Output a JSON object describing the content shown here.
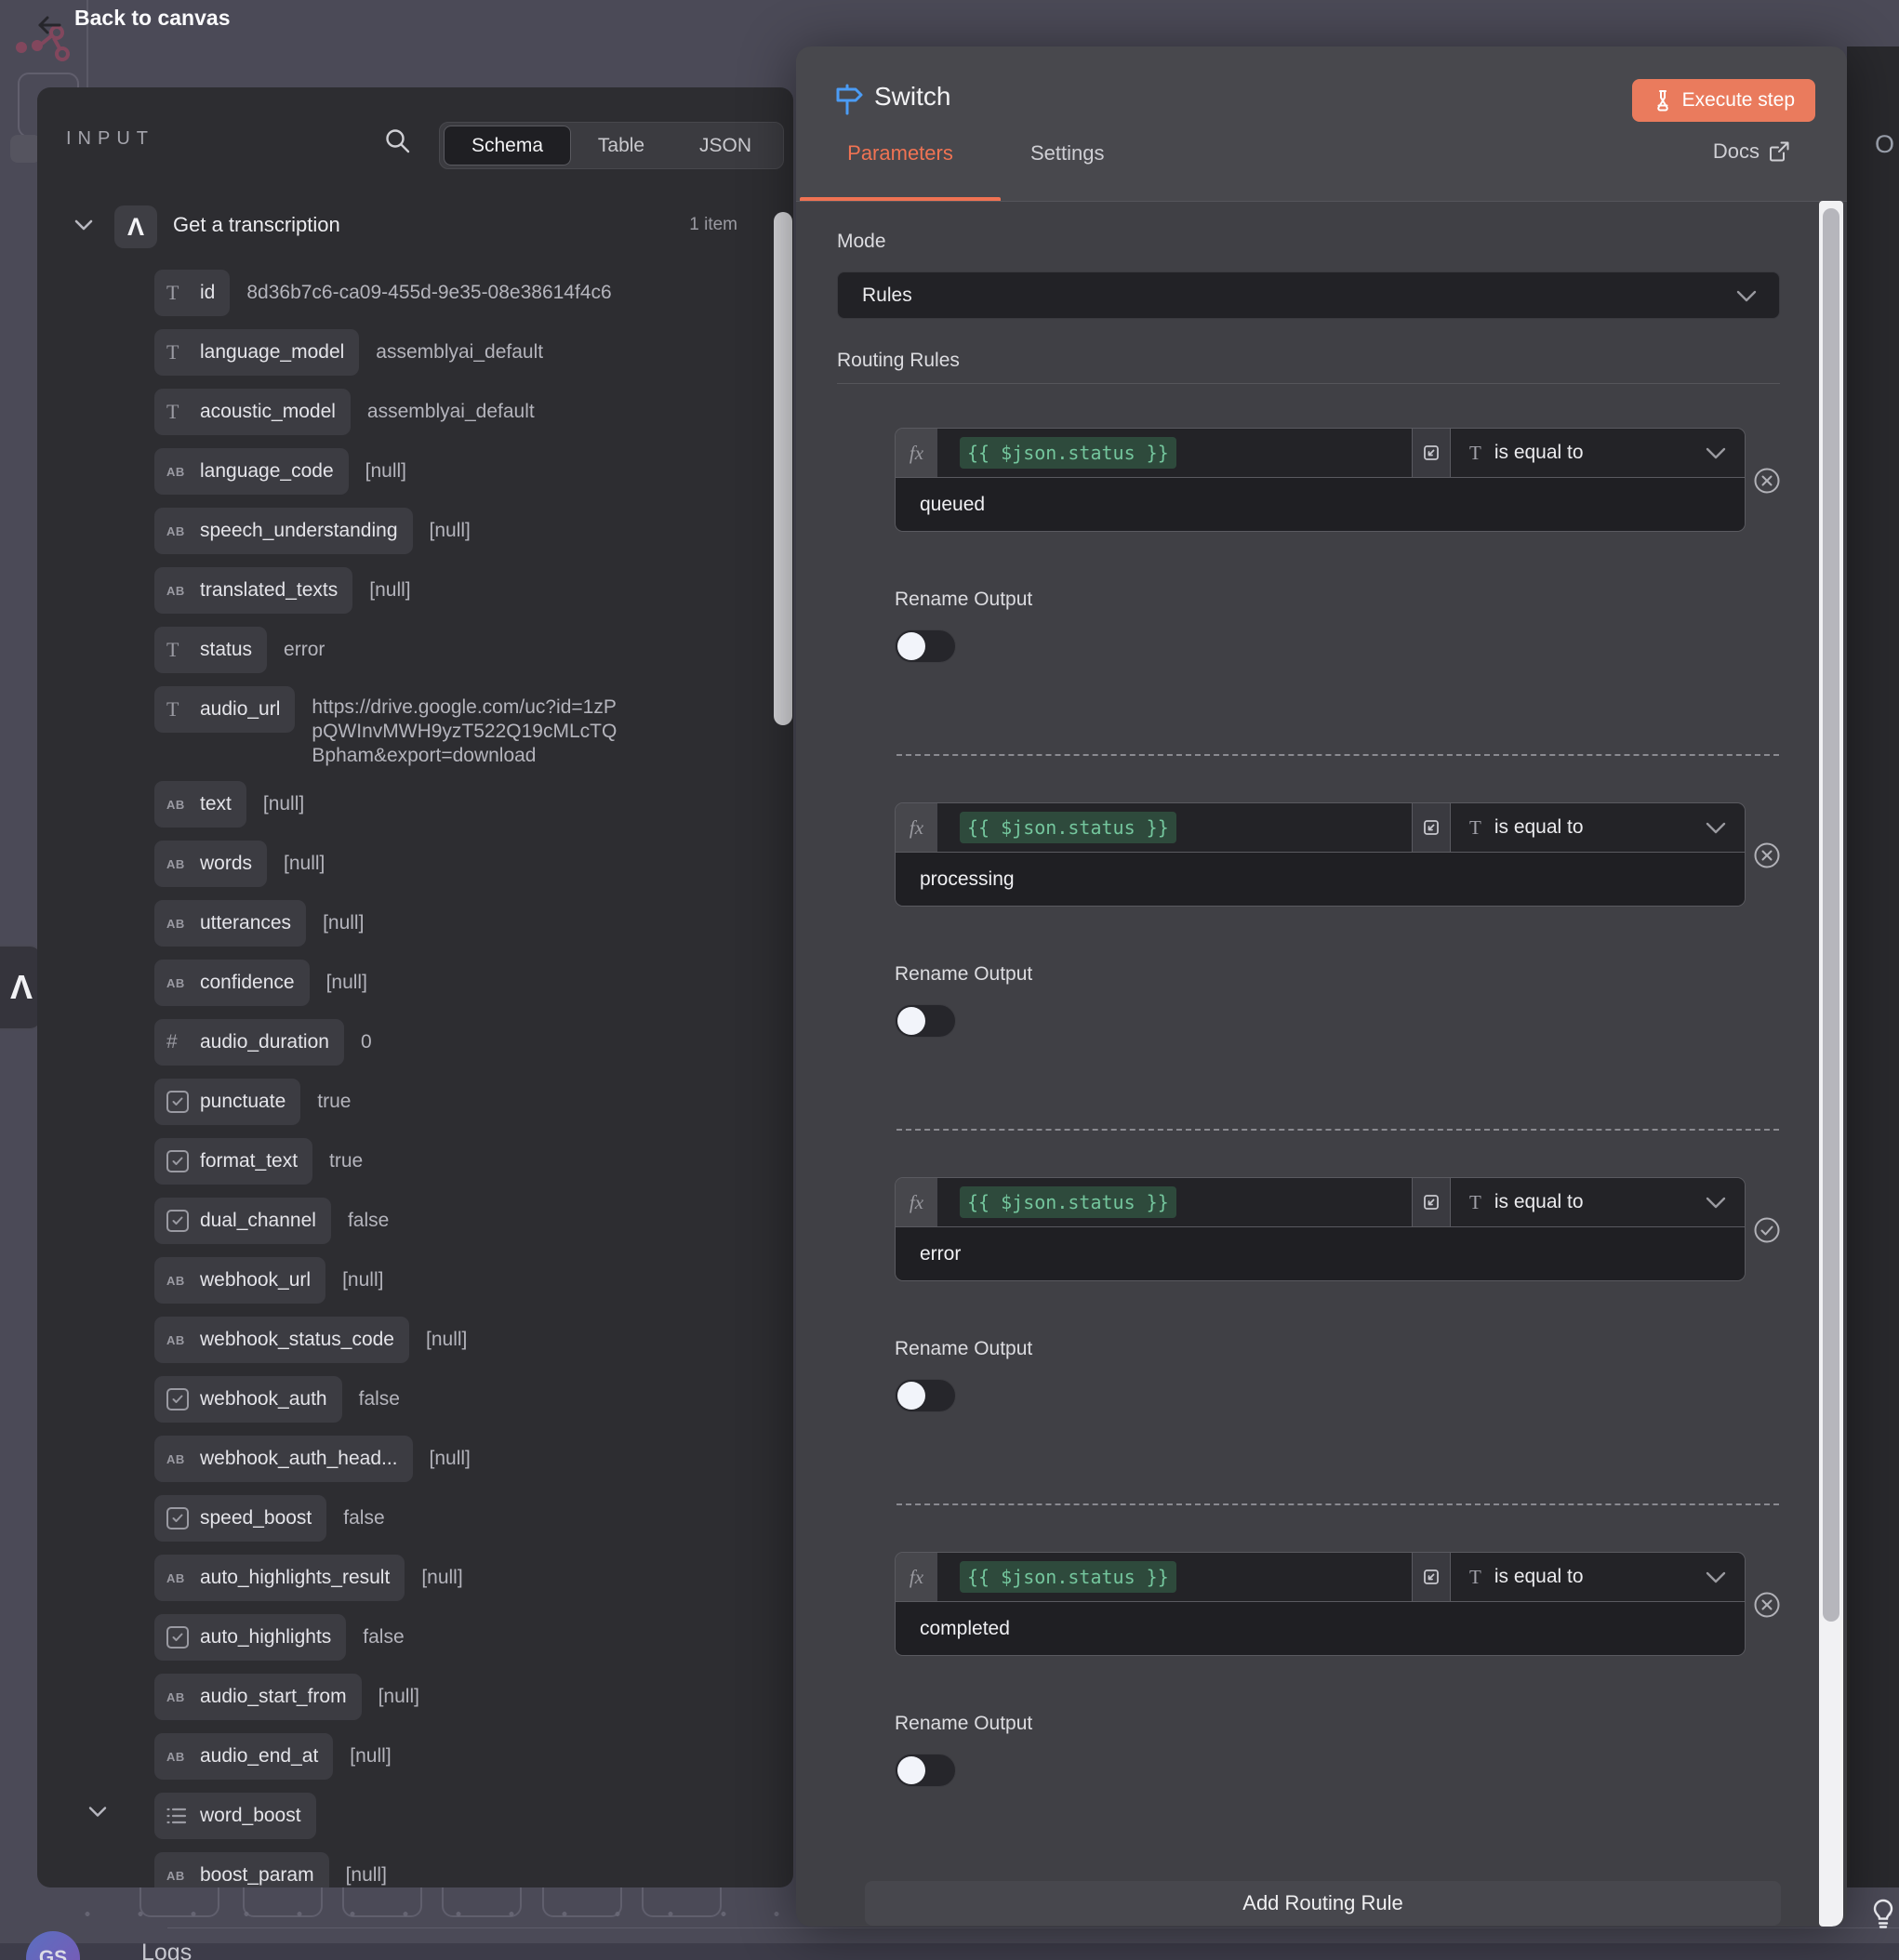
{
  "topbar": {
    "back_label": "Back to canvas"
  },
  "input_panel": {
    "title": "INPUT",
    "tabs": [
      {
        "label": "Schema",
        "selected": true
      },
      {
        "label": "Table",
        "selected": false
      },
      {
        "label": "JSON",
        "selected": false
      }
    ],
    "root": {
      "label": "Get a transcription",
      "count": "1 item"
    },
    "rows": [
      {
        "icon": "text",
        "name": "id",
        "value": "8d36b7c6-ca09-455d-9e35-08e38614f4c6"
      },
      {
        "icon": "text",
        "name": "language_model",
        "value": "assemblyai_default"
      },
      {
        "icon": "text",
        "name": "acoustic_model",
        "value": "assemblyai_default"
      },
      {
        "icon": "ab",
        "name": "language_code",
        "value": "[null]"
      },
      {
        "icon": "ab",
        "name": "speech_understanding",
        "value": "[null]"
      },
      {
        "icon": "ab",
        "name": "translated_texts",
        "value": "[null]"
      },
      {
        "icon": "text",
        "name": "status",
        "value": "error"
      },
      {
        "icon": "text",
        "name": "audio_url",
        "value": "https://drive.google.com/uc?id=1zPpQWInvMWH9yzT522Q19cMLcTQBpham&export=download",
        "wrap": true
      },
      {
        "icon": "ab",
        "name": "text",
        "value": "[null]"
      },
      {
        "icon": "ab",
        "name": "words",
        "value": "[null]"
      },
      {
        "icon": "ab",
        "name": "utterances",
        "value": "[null]"
      },
      {
        "icon": "ab",
        "name": "confidence",
        "value": "[null]"
      },
      {
        "icon": "num",
        "name": "audio_duration",
        "value": "0"
      },
      {
        "icon": "bool",
        "name": "punctuate",
        "value": "true"
      },
      {
        "icon": "bool",
        "name": "format_text",
        "value": "true"
      },
      {
        "icon": "bool",
        "name": "dual_channel",
        "value": "false"
      },
      {
        "icon": "ab",
        "name": "webhook_url",
        "value": "[null]"
      },
      {
        "icon": "ab",
        "name": "webhook_status_code",
        "value": "[null]"
      },
      {
        "icon": "bool",
        "name": "webhook_auth",
        "value": "false"
      },
      {
        "icon": "ab",
        "name": "webhook_auth_head...",
        "value": "[null]"
      },
      {
        "icon": "bool",
        "name": "speed_boost",
        "value": "false"
      },
      {
        "icon": "ab",
        "name": "auto_highlights_result",
        "value": "[null]"
      },
      {
        "icon": "bool",
        "name": "auto_highlights",
        "value": "false"
      },
      {
        "icon": "ab",
        "name": "audio_start_from",
        "value": "[null]"
      },
      {
        "icon": "ab",
        "name": "audio_end_at",
        "value": "[null]"
      },
      {
        "icon": "list",
        "name": "word_boost",
        "value": "",
        "caret": true
      },
      {
        "icon": "ab",
        "name": "boost_param",
        "value": "[null]"
      }
    ]
  },
  "switch_panel": {
    "title": "Switch",
    "execute_label": "Execute step",
    "tabs": {
      "parameters": "Parameters",
      "settings": "Settings"
    },
    "docs_label": "Docs",
    "mode_label": "Mode",
    "mode_value": "Rules",
    "routing_label": "Routing Rules",
    "rename_label": "Rename Output",
    "add_rule_label": "Add Routing Rule",
    "rules": [
      {
        "expression": "{{ $json.status }}",
        "operator": "is equal to",
        "value": "queued",
        "action_icon": "x-circle"
      },
      {
        "expression": "{{ $json.status }}",
        "operator": "is equal to",
        "value": "processing",
        "action_icon": "x-circle"
      },
      {
        "expression": "{{ $json.status }}",
        "operator": "is equal to",
        "value": "error",
        "action_icon": "check-circle"
      },
      {
        "expression": "{{ $json.status }}",
        "operator": "is equal to",
        "value": "completed",
        "action_icon": "x-circle"
      }
    ]
  },
  "output_panel": {
    "visible_letter": "O"
  },
  "statusbar": {
    "logs_label": "Logs",
    "avatar_initials": "GS"
  },
  "colors": {
    "accent_orange": "#F07353",
    "execute_button": "#EA7B5D",
    "expression_green": "#74C69D",
    "node_icon_blue": "#4B9CF5"
  }
}
